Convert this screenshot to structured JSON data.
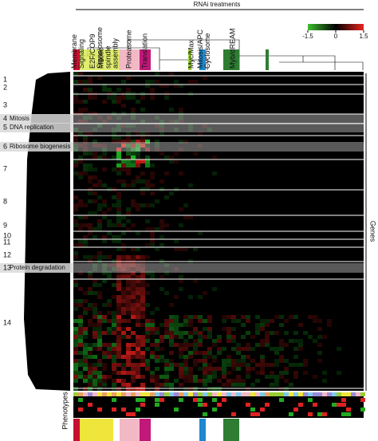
{
  "header": {
    "title": "RNAi treatments"
  },
  "colorbar": {
    "range": [
      -1.5,
      1.5
    ],
    "ticks": [
      -1.5,
      0,
      1.5
    ]
  },
  "column_clusters": [
    {
      "lines": [
        "Membrane",
        "Signaling"
      ]
    },
    {
      "lines": [
        "E2F/COP9",
        "Signalosome"
      ]
    },
    {
      "lines": [
        "Mitotic",
        "spindle",
        "assembly"
      ]
    },
    {
      "lines": [
        "Proteasome"
      ]
    },
    {
      "lines": [
        "Translation"
      ]
    },
    {
      "lines": [
        "Myc/Max"
      ]
    },
    {
      "lines": [
        "Mitosis/APC",
        "Cyclosome"
      ]
    },
    {
      "lines": [
        "Myb/dREAM"
      ]
    }
  ],
  "row_clusters": [
    {
      "number": 1
    },
    {
      "number": 2
    },
    {
      "number": 3
    },
    {
      "number": 4,
      "label": "Mitosis"
    },
    {
      "number": 5,
      "label": "DNA replication"
    },
    {
      "number": 6,
      "label": "Ribosome biogenesis"
    },
    {
      "number": 7
    },
    {
      "number": 8
    },
    {
      "number": 9
    },
    {
      "number": 10
    },
    {
      "number": 11
    },
    {
      "number": 12
    },
    {
      "number": 13,
      "label": "Protein degradation"
    },
    {
      "number": 14
    }
  ],
  "axis_labels": {
    "rows": "Genes",
    "bottom": "Phenotypes"
  }
}
